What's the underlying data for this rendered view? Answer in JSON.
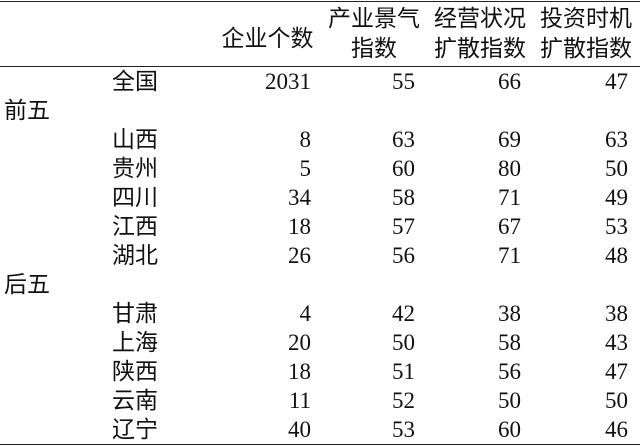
{
  "chart_data": {
    "type": "table",
    "columns": [
      {
        "lines": [
          "企业个数"
        ]
      },
      {
        "lines": [
          "产业景气",
          "指数"
        ]
      },
      {
        "lines": [
          "经营状况",
          "扩散指数"
        ]
      },
      {
        "lines": [
          "投资时机",
          "扩散指数"
        ]
      }
    ],
    "rows": [
      {
        "name": "全国",
        "values": [
          2031,
          55,
          66,
          47
        ]
      },
      {
        "group": "前五"
      },
      {
        "name": "山西",
        "values": [
          8,
          63,
          69,
          63
        ]
      },
      {
        "name": "贵州",
        "values": [
          5,
          60,
          80,
          50
        ]
      },
      {
        "name": "四川",
        "values": [
          34,
          58,
          71,
          49
        ]
      },
      {
        "name": "江西",
        "values": [
          18,
          57,
          67,
          53
        ]
      },
      {
        "name": "湖北",
        "values": [
          26,
          56,
          71,
          48
        ]
      },
      {
        "group": "后五"
      },
      {
        "name": "甘肃",
        "values": [
          4,
          42,
          38,
          38
        ]
      },
      {
        "name": "上海",
        "values": [
          20,
          50,
          58,
          43
        ]
      },
      {
        "name": "陕西",
        "values": [
          18,
          51,
          56,
          47
        ]
      },
      {
        "name": "云南",
        "values": [
          11,
          52,
          50,
          50
        ]
      },
      {
        "name": "辽宁",
        "values": [
          40,
          53,
          60,
          46
        ]
      }
    ]
  }
}
